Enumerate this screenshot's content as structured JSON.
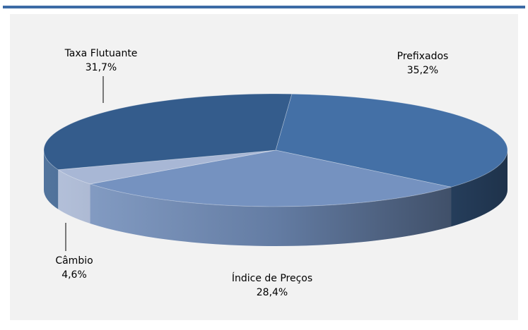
{
  "chart_data": {
    "type": "pie",
    "categories": [
      "Prefixados",
      "Índice de Preços",
      "Câmbio",
      "Taxa Flutuante"
    ],
    "values": [
      35.2,
      28.4,
      4.6,
      31.7
    ],
    "value_labels": [
      "35,2%",
      "28,4%",
      "4,6%",
      "31,7%"
    ],
    "colors": [
      "#4470a6",
      "#7592c0",
      "#a8b7d5",
      "#345c8c"
    ]
  }
}
